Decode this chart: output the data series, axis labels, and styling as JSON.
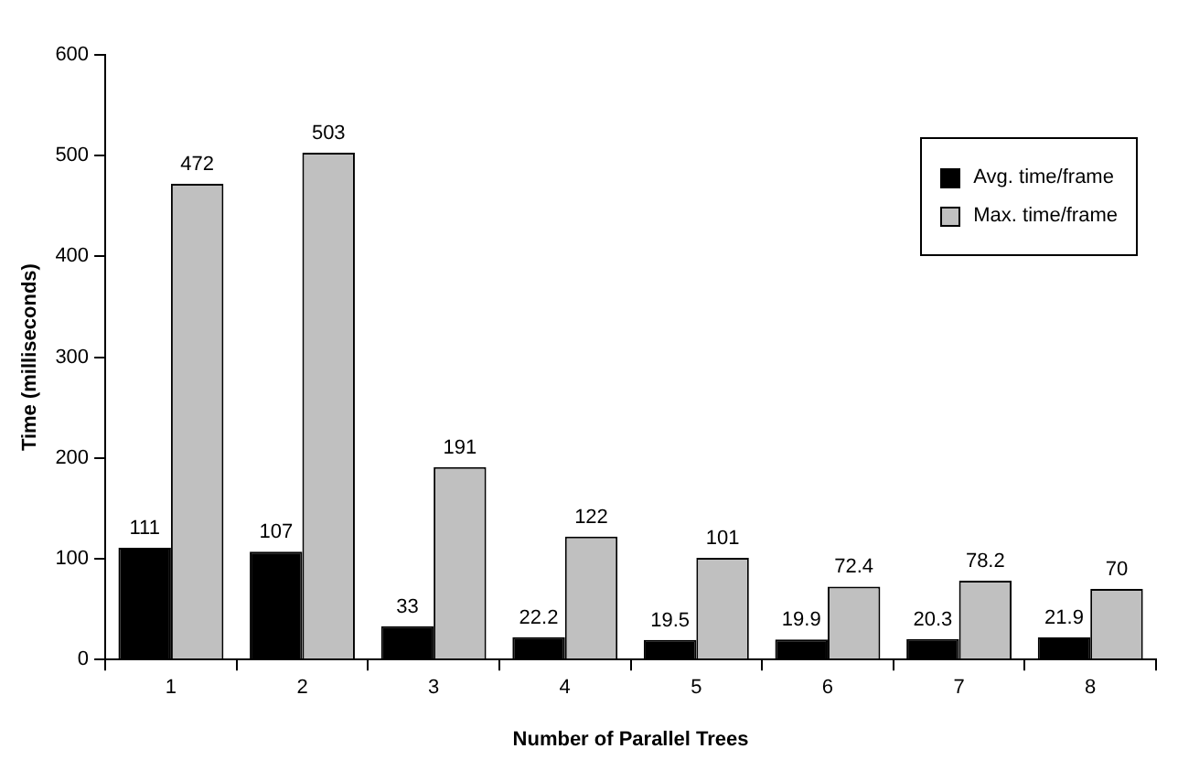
{
  "chart_data": {
    "type": "bar",
    "xlabel": "Number of Parallel Trees",
    "ylabel": "Time (milliseconds)",
    "categories": [
      "1",
      "2",
      "3",
      "4",
      "5",
      "6",
      "7",
      "8"
    ],
    "series": [
      {
        "name": "Avg. time/frame",
        "color": "#000000",
        "values": [
          111,
          107,
          33,
          22.2,
          19.5,
          19.9,
          20.3,
          21.9
        ]
      },
      {
        "name": "Max. time/frame",
        "color": "#c0c0c0",
        "values": [
          472,
          503,
          191,
          122,
          101,
          72.4,
          78.2,
          70
        ]
      }
    ],
    "ylim": [
      0,
      600
    ],
    "yticks": [
      0,
      100,
      200,
      300,
      400,
      500,
      600
    ],
    "grid": false,
    "legend": "top right",
    "data_labels": true
  }
}
